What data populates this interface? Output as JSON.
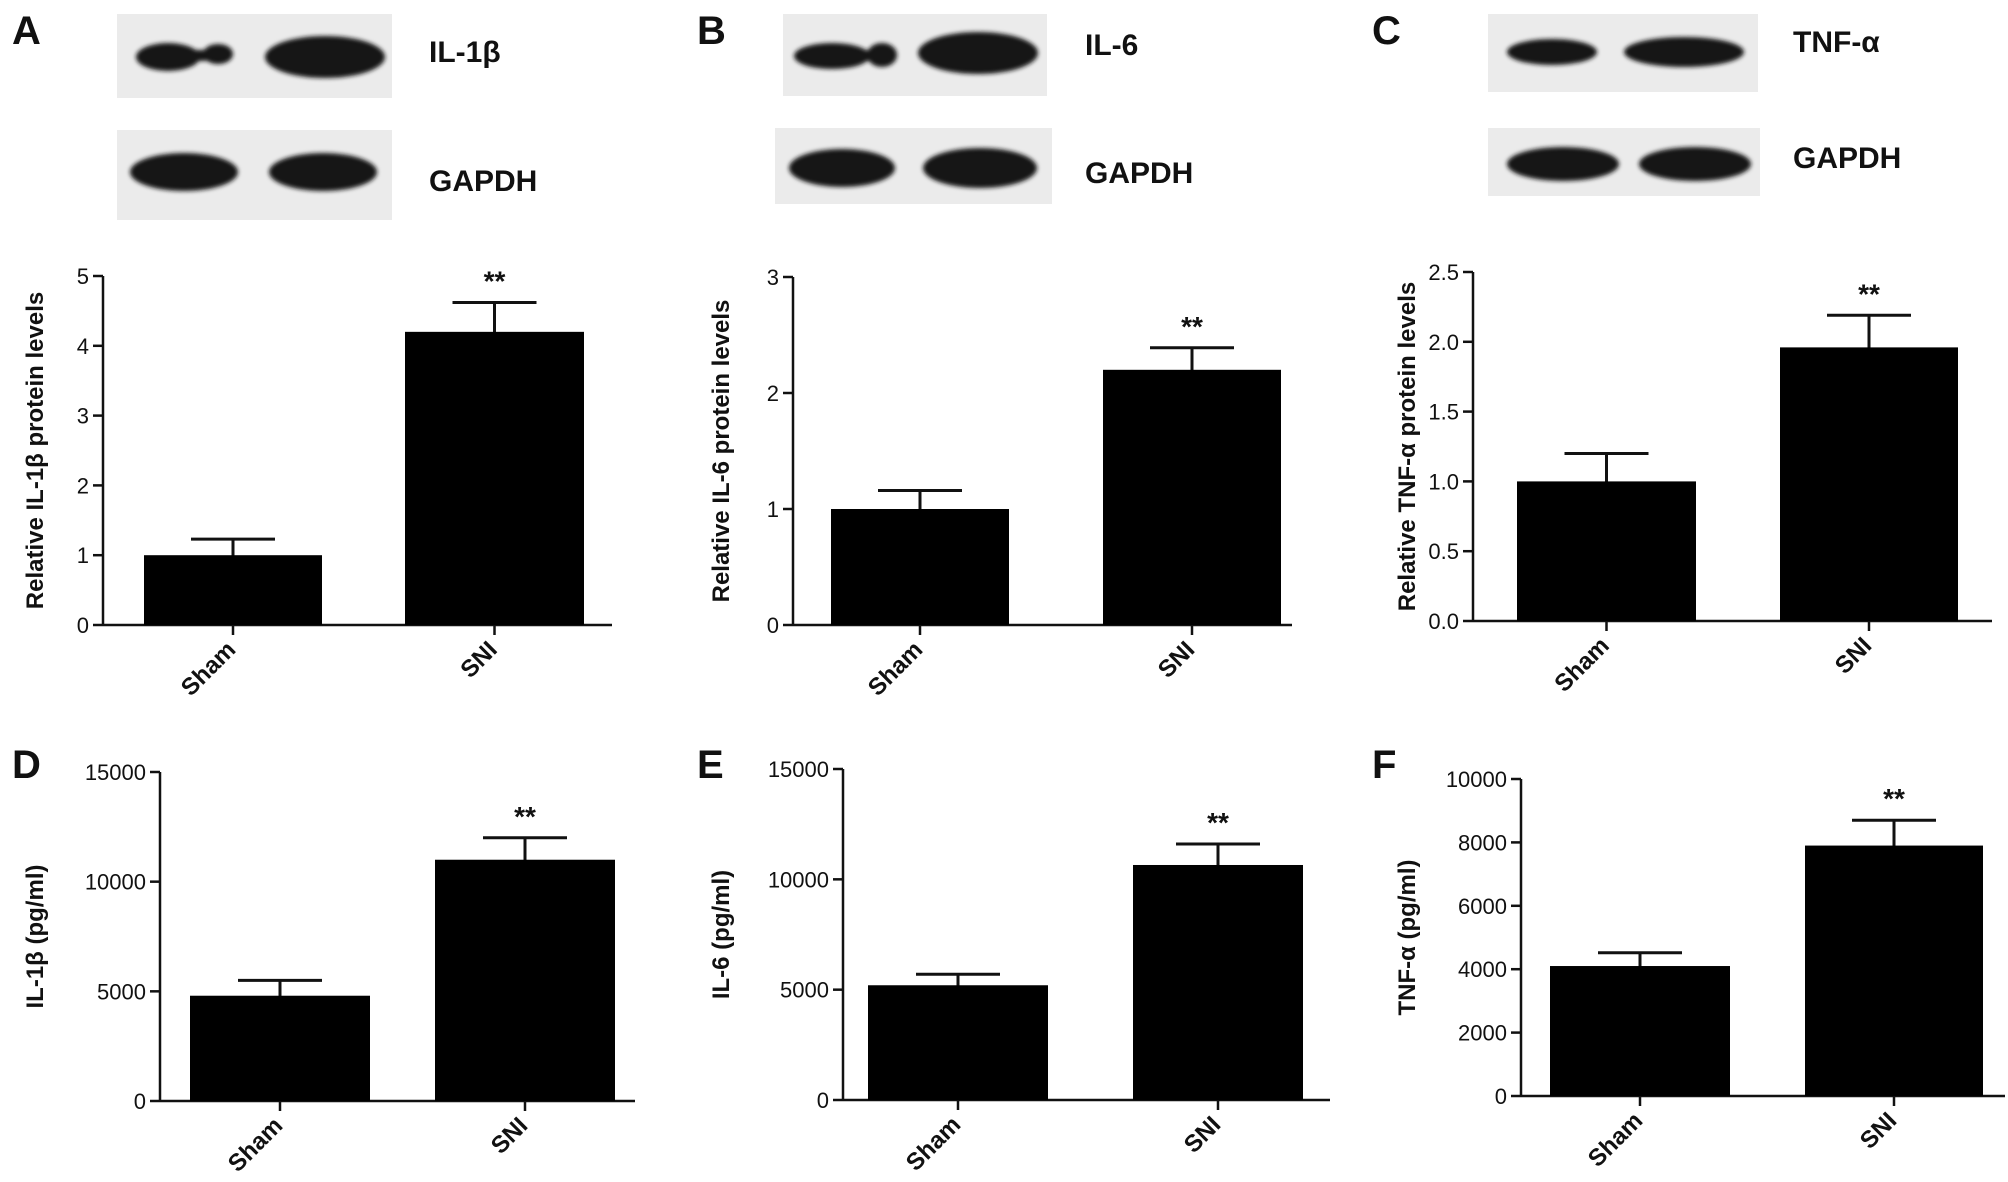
{
  "panels": [
    {
      "letter": "A",
      "blot_target_label": "IL-1β",
      "blot_loading_label": "GAPDH"
    },
    {
      "letter": "B",
      "blot_target_label": "IL-6",
      "blot_loading_label": "GAPDH"
    },
    {
      "letter": "C",
      "blot_target_label": "TNF-α",
      "blot_loading_label": "GAPDH"
    },
    {
      "letter": "D"
    },
    {
      "letter": "E"
    },
    {
      "letter": "F"
    }
  ],
  "chart_data": [
    {
      "panel": "A",
      "type": "bar",
      "categories": [
        "Sham",
        "SNI"
      ],
      "values": [
        1.0,
        4.2
      ],
      "errors": [
        0.23,
        0.42
      ],
      "significance": [
        "",
        "**"
      ],
      "ylabel": "Relative IL-1β protein levels",
      "xlabel": "",
      "ylim": [
        0,
        5
      ],
      "yticks": [
        0,
        1,
        2,
        3,
        4,
        5
      ],
      "ytick_labels": [
        "0",
        "1",
        "2",
        "3",
        "4",
        "5"
      ],
      "grid": false,
      "bar_color": "#000000"
    },
    {
      "panel": "B",
      "type": "bar",
      "categories": [
        "Sham",
        "SNI"
      ],
      "values": [
        1.0,
        2.2
      ],
      "errors": [
        0.16,
        0.19
      ],
      "significance": [
        "",
        "**"
      ],
      "ylabel": "Relative IL-6 protein levels",
      "xlabel": "",
      "ylim": [
        0,
        3
      ],
      "yticks": [
        0,
        1,
        2,
        3
      ],
      "ytick_labels": [
        "0",
        "1",
        "2",
        "3"
      ],
      "grid": false,
      "bar_color": "#000000"
    },
    {
      "panel": "C",
      "type": "bar",
      "categories": [
        "Sham",
        "SNI"
      ],
      "values": [
        1.0,
        1.96
      ],
      "errors": [
        0.2,
        0.23
      ],
      "significance": [
        "",
        "**"
      ],
      "ylabel": "Relative TNF-α protein levels",
      "xlabel": "",
      "ylim": [
        0,
        2.5
      ],
      "yticks": [
        0,
        0.5,
        1.0,
        1.5,
        2.0,
        2.5
      ],
      "ytick_labels": [
        "0.0",
        "0.5",
        "1.0",
        "1.5",
        "2.0",
        "2.5"
      ],
      "grid": false,
      "bar_color": "#000000"
    },
    {
      "panel": "D",
      "type": "bar",
      "categories": [
        "Sham",
        "SNI"
      ],
      "values": [
        4800,
        11000
      ],
      "errors": [
        700,
        1000
      ],
      "significance": [
        "",
        "**"
      ],
      "ylabel": "IL-1β (pg/ml)",
      "xlabel": "",
      "ylim": [
        0,
        15000
      ],
      "yticks": [
        0,
        5000,
        10000,
        15000
      ],
      "ytick_labels": [
        "0",
        "5000",
        "10000",
        "15000"
      ],
      "grid": false,
      "bar_color": "#000000"
    },
    {
      "panel": "E",
      "type": "bar",
      "categories": [
        "Sham",
        "SNI"
      ],
      "values": [
        5200,
        10650
      ],
      "errors": [
        500,
        950
      ],
      "significance": [
        "",
        "**"
      ],
      "ylabel": "IL-6 (pg/ml)",
      "xlabel": "",
      "ylim": [
        0,
        15000
      ],
      "yticks": [
        0,
        5000,
        10000,
        15000
      ],
      "ytick_labels": [
        "0",
        "5000",
        "10000",
        "15000"
      ],
      "grid": false,
      "bar_color": "#000000"
    },
    {
      "panel": "F",
      "type": "bar",
      "categories": [
        "Sham",
        "SNI"
      ],
      "values": [
        4100,
        7900
      ],
      "errors": [
        420,
        800
      ],
      "significance": [
        "",
        "**"
      ],
      "ylabel": "TNF-α (pg/ml)",
      "xlabel": "",
      "ylim": [
        0,
        10000
      ],
      "yticks": [
        0,
        2000,
        4000,
        6000,
        8000,
        10000
      ],
      "ytick_labels": [
        "0",
        "2000",
        "4000",
        "6000",
        "8000",
        "10000"
      ],
      "grid": false,
      "bar_color": "#000000"
    }
  ]
}
